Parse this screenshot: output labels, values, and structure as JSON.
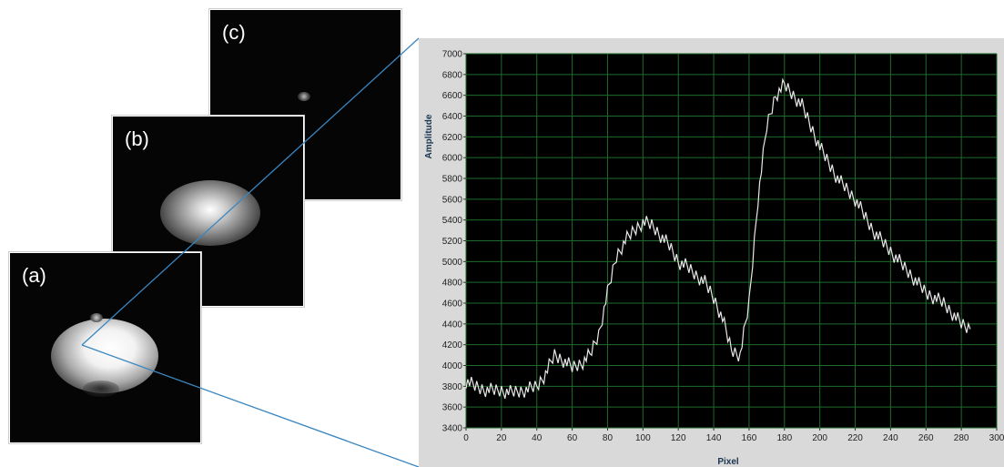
{
  "panels": {
    "a": {
      "label": "(a)"
    },
    "b": {
      "label": "(b)"
    },
    "c": {
      "label": "(c)"
    }
  },
  "colors": {
    "plot_background": "#000000",
    "grid": "#1f6b2a",
    "trace": "#e8e8e8",
    "callout_line": "#3a86c0",
    "panel_background": "#d9d9d9"
  },
  "chart_data": {
    "type": "line",
    "title": "",
    "xlabel": "Pixel",
    "ylabel": "Amplitude",
    "xlim": [
      0,
      300
    ],
    "ylim": [
      3400,
      7000
    ],
    "x_ticks": [
      0,
      20,
      40,
      60,
      80,
      100,
      120,
      140,
      160,
      180,
      200,
      220,
      240,
      260,
      280,
      300
    ],
    "x_tick_labels": [
      "0",
      "20",
      "40",
      "60",
      "80",
      "100",
      "120",
      "140",
      "160",
      "180",
      "200",
      "220",
      "240",
      "260",
      "280",
      "300"
    ],
    "y_ticks": [
      3400,
      3600,
      3800,
      4000,
      4200,
      4400,
      4600,
      4800,
      5000,
      5200,
      5400,
      5600,
      5800,
      6000,
      6200,
      6400,
      6600,
      6800,
      7000
    ],
    "y_tick_labels": [
      "3400",
      "3600",
      "3800",
      "4000",
      "4200",
      "4400",
      "4600",
      "4800",
      "5000",
      "5200",
      "5400",
      "5600",
      "5800",
      "6000",
      "6200",
      "6400",
      "6600",
      "6800",
      "7000"
    ],
    "grid": true,
    "series": [
      {
        "x": [
          0,
          5,
          10,
          15,
          20,
          25,
          30,
          35,
          40,
          45,
          50,
          55,
          60,
          65,
          70,
          75,
          80,
          85,
          90,
          95,
          100,
          105,
          110,
          115,
          120,
          125,
          130,
          135,
          140,
          145,
          150,
          155,
          160,
          165,
          170,
          175,
          180,
          185,
          190,
          195,
          200,
          205,
          210,
          215,
          220,
          225,
          230,
          235,
          240,
          245,
          250,
          255,
          260,
          265,
          270,
          275,
          280,
          285
        ],
        "y": [
          3850,
          3800,
          3770,
          3760,
          3760,
          3740,
          3750,
          3770,
          3800,
          3920,
          4100,
          4050,
          3980,
          4020,
          4100,
          4300,
          4700,
          5050,
          5200,
          5300,
          5380,
          5350,
          5250,
          5150,
          5000,
          4950,
          4870,
          4800,
          4650,
          4450,
          4150,
          4100,
          4600,
          5600,
          6300,
          6600,
          6700,
          6600,
          6500,
          6300,
          6100,
          5950,
          5800,
          5700,
          5600,
          5450,
          5300,
          5200,
          5100,
          5000,
          4900,
          4800,
          4700,
          4650,
          4600,
          4500,
          4400,
          4350
        ]
      }
    ]
  }
}
